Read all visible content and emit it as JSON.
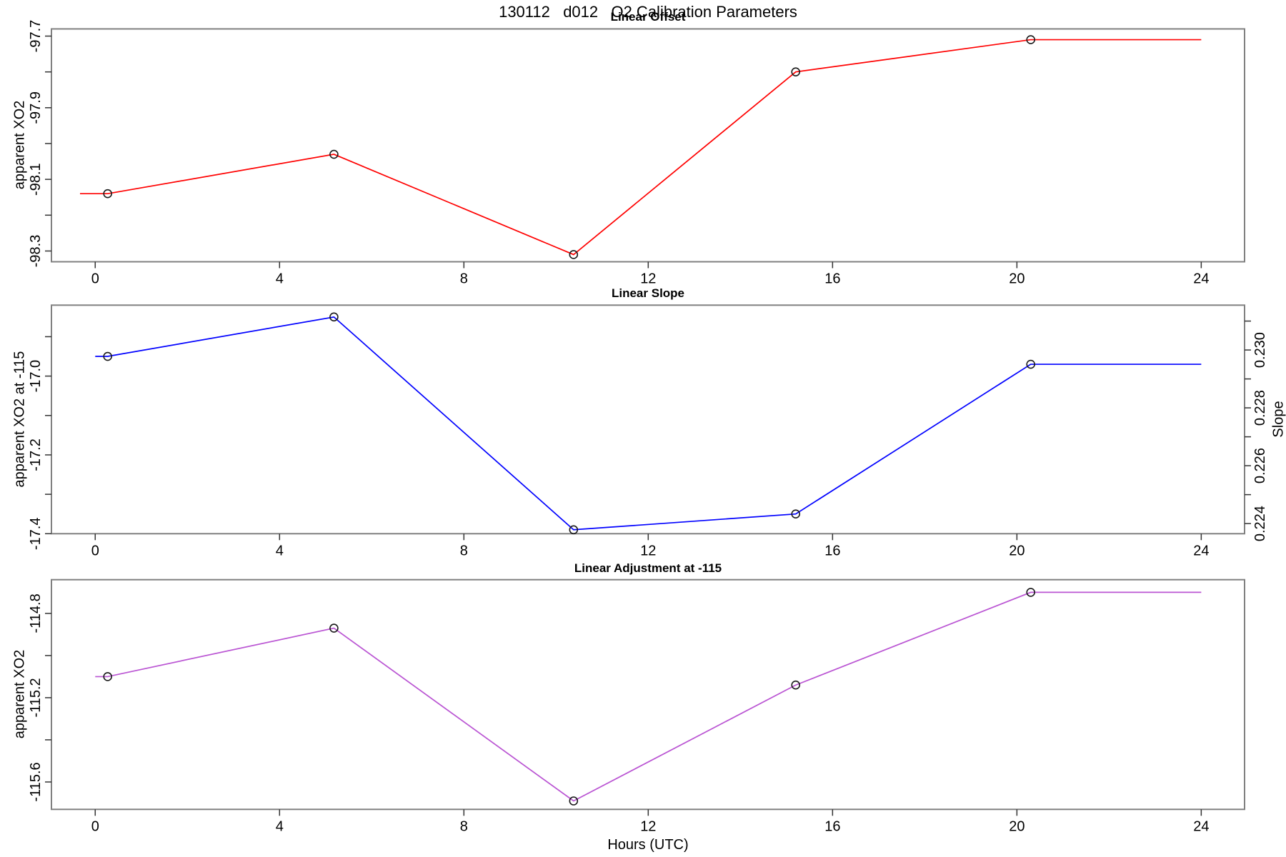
{
  "main_title": "130112   d012   O2 Calibration Parameters",
  "xlabel": "Hours (UTC)",
  "x_axis": {
    "ticks": [
      0,
      4,
      8,
      12,
      16,
      20,
      24
    ],
    "lim": [
      -0.95,
      24.94
    ]
  },
  "marker": "open-circle",
  "colors": {
    "panel_border": "#808080",
    "tick": "#333333",
    "marker_stroke": "#1a1a1a"
  },
  "chart_data": [
    {
      "type": "line",
      "title": "Linear Offset",
      "ylabel": "apparent XO2",
      "color": "#FF0000",
      "x": [
        0.27,
        5.18,
        10.38,
        15.2,
        20.3
      ],
      "y": [
        -98.14,
        -98.03,
        -98.31,
        -97.8,
        -97.71
      ],
      "line_start_x": -0.33,
      "line_end_x": 24,
      "ylim": [
        -98.33,
        -97.68
      ],
      "yticks": [
        {
          "v": -98.3,
          "label": "-98.3"
        },
        {
          "v": -98.2,
          "label": ""
        },
        {
          "v": -98.1,
          "label": "-98.1"
        },
        {
          "v": -98.0,
          "label": ""
        },
        {
          "v": -97.9,
          "label": "-97.9"
        },
        {
          "v": -97.8,
          "label": ""
        },
        {
          "v": -97.7,
          "label": "-97.7"
        }
      ]
    },
    {
      "type": "line",
      "title": "Linear Slope",
      "ylabel": "apparent XO2 at -115",
      "y2label": "Slope",
      "color": "#0000FF",
      "x": [
        0.27,
        5.18,
        10.38,
        15.2,
        20.3
      ],
      "y": [
        -16.95,
        -16.85,
        -17.39,
        -17.35,
        -16.97
      ],
      "y2": [
        0.2298,
        0.2313,
        0.2239,
        0.2244,
        0.2295
      ],
      "line_start_x": 0,
      "line_end_x": 24,
      "ylim": [
        -17.4,
        -16.82
      ],
      "yticks": [
        {
          "v": -17.4,
          "label": "-17.4"
        },
        {
          "v": -17.3,
          "label": ""
        },
        {
          "v": -17.2,
          "label": "-17.2"
        },
        {
          "v": -17.1,
          "label": ""
        },
        {
          "v": -17.0,
          "label": "-17.0"
        },
        {
          "v": -16.9,
          "label": ""
        }
      ],
      "y2lim": [
        0.22365,
        0.23155
      ],
      "y2ticks": [
        {
          "v": 0.224,
          "label": "0.224"
        },
        {
          "v": 0.225,
          "label": ""
        },
        {
          "v": 0.226,
          "label": "0.226"
        },
        {
          "v": 0.227,
          "label": ""
        },
        {
          "v": 0.228,
          "label": "0.228"
        },
        {
          "v": 0.229,
          "label": ""
        },
        {
          "v": 0.23,
          "label": "0.230"
        },
        {
          "v": 0.231,
          "label": ""
        }
      ]
    },
    {
      "type": "line",
      "title": "Linear Adjustment at -115",
      "ylabel": "apparent XO2",
      "color": "#BA55D3",
      "x": [
        0.27,
        5.18,
        10.38,
        15.2,
        20.3
      ],
      "y": [
        -115.1,
        -114.87,
        -115.69,
        -115.14,
        -114.7
      ],
      "line_start_x": 0,
      "line_end_x": 24,
      "ylim": [
        -115.73,
        -114.64
      ],
      "yticks": [
        {
          "v": -115.6,
          "label": "-115.6"
        },
        {
          "v": -115.4,
          "label": ""
        },
        {
          "v": -115.2,
          "label": "-115.2"
        },
        {
          "v": -115.0,
          "label": ""
        },
        {
          "v": -114.8,
          "label": "-114.8"
        }
      ]
    }
  ]
}
